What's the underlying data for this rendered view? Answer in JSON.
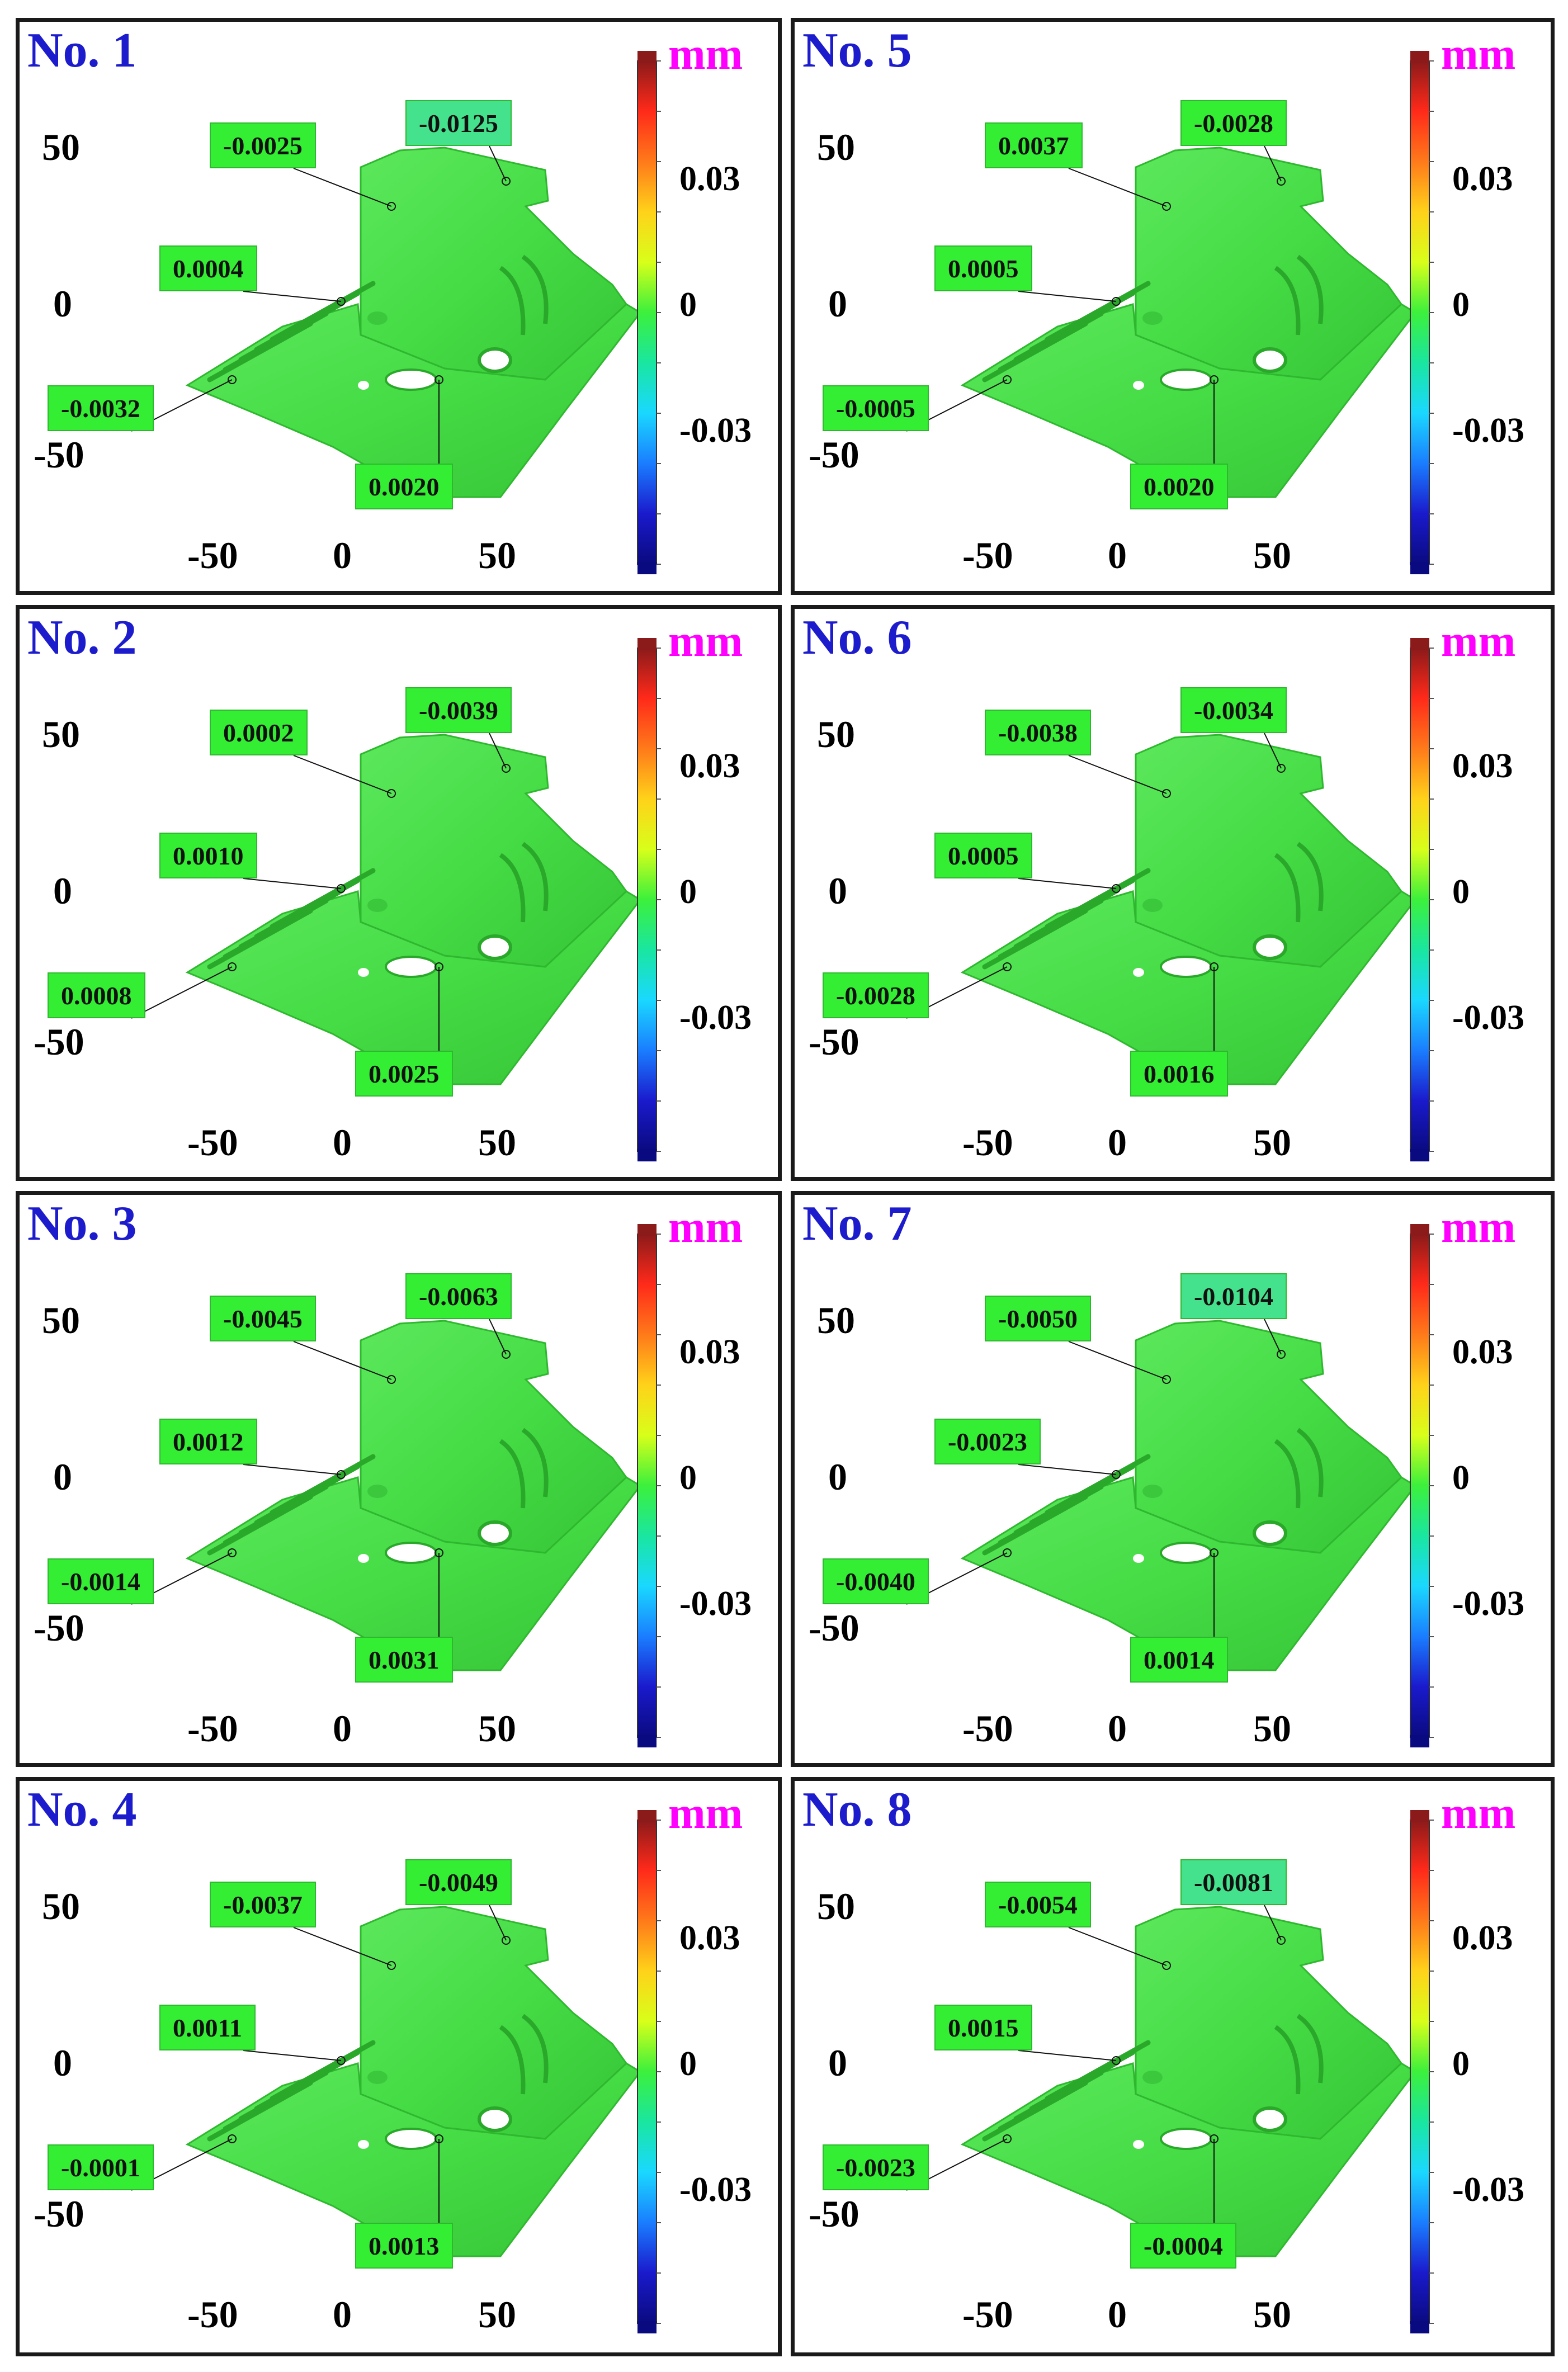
{
  "unit": "mm",
  "colorbar": {
    "top_label": "0.03",
    "mid_label": "0",
    "bottom_label": "-0.03",
    "colors": [
      "#8b1a1a",
      "#ff2a1a",
      "#ff7a1a",
      "#ffd21a",
      "#d8ff1a",
      "#3cf03c",
      "#1ae6a0",
      "#1ad8ff",
      "#1a7dff",
      "#1a1acc",
      "#0a0a80"
    ]
  },
  "axis": {
    "y_ticks": [
      "50",
      "0",
      "-50"
    ],
    "x_ticks": [
      "-50",
      "0",
      "50"
    ]
  },
  "colors": {
    "title": "#1c1ccc",
    "unit": "#ff00ff",
    "surface": "#45dc45",
    "surface_dark": "#2fb82f",
    "callout_bg": "#33ee33",
    "callout_bg_alt": "#45e28d"
  },
  "panels": [
    {
      "title": "No. 1",
      "callouts": [
        {
          "value": "-0.0025",
          "alt": false
        },
        {
          "value": "-0.0125",
          "alt": true
        },
        {
          "value": "0.0004",
          "alt": false
        },
        {
          "value": "-0.0032",
          "alt": false
        },
        {
          "value": "0.0020",
          "alt": false
        }
      ]
    },
    {
      "title": "No. 2",
      "callouts": [
        {
          "value": "0.0002",
          "alt": false
        },
        {
          "value": "-0.0039",
          "alt": false
        },
        {
          "value": "0.0010",
          "alt": false
        },
        {
          "value": "0.0008",
          "alt": false
        },
        {
          "value": "0.0025",
          "alt": false
        }
      ]
    },
    {
      "title": "No. 3",
      "callouts": [
        {
          "value": "-0.0045",
          "alt": false
        },
        {
          "value": "-0.0063",
          "alt": false
        },
        {
          "value": "0.0012",
          "alt": false
        },
        {
          "value": "-0.0014",
          "alt": false
        },
        {
          "value": "0.0031",
          "alt": false
        }
      ]
    },
    {
      "title": "No. 4",
      "callouts": [
        {
          "value": "-0.0037",
          "alt": false
        },
        {
          "value": "-0.0049",
          "alt": false
        },
        {
          "value": "0.0011",
          "alt": false
        },
        {
          "value": "-0.0001",
          "alt": false
        },
        {
          "value": "0.0013",
          "alt": false
        }
      ]
    },
    {
      "title": "No. 5",
      "callouts": [
        {
          "value": "0.0037",
          "alt": false
        },
        {
          "value": "-0.0028",
          "alt": false
        },
        {
          "value": "0.0005",
          "alt": false
        },
        {
          "value": "-0.0005",
          "alt": false
        },
        {
          "value": "0.0020",
          "alt": false
        }
      ]
    },
    {
      "title": "No. 6",
      "callouts": [
        {
          "value": "-0.0038",
          "alt": false
        },
        {
          "value": "-0.0034",
          "alt": false
        },
        {
          "value": "0.0005",
          "alt": false
        },
        {
          "value": "-0.0028",
          "alt": false
        },
        {
          "value": "0.0016",
          "alt": false
        }
      ]
    },
    {
      "title": "No. 7",
      "callouts": [
        {
          "value": "-0.0050",
          "alt": false
        },
        {
          "value": "-0.0104",
          "alt": true
        },
        {
          "value": "-0.0023",
          "alt": false
        },
        {
          "value": "-0.0040",
          "alt": false
        },
        {
          "value": "0.0014",
          "alt": false
        }
      ]
    },
    {
      "title": "No. 8",
      "callouts": [
        {
          "value": "-0.0054",
          "alt": false
        },
        {
          "value": "-0.0081",
          "alt": true
        },
        {
          "value": "0.0015",
          "alt": false
        },
        {
          "value": "-0.0023",
          "alt": false
        },
        {
          "value": "-0.0004",
          "alt": false
        }
      ]
    }
  ]
}
